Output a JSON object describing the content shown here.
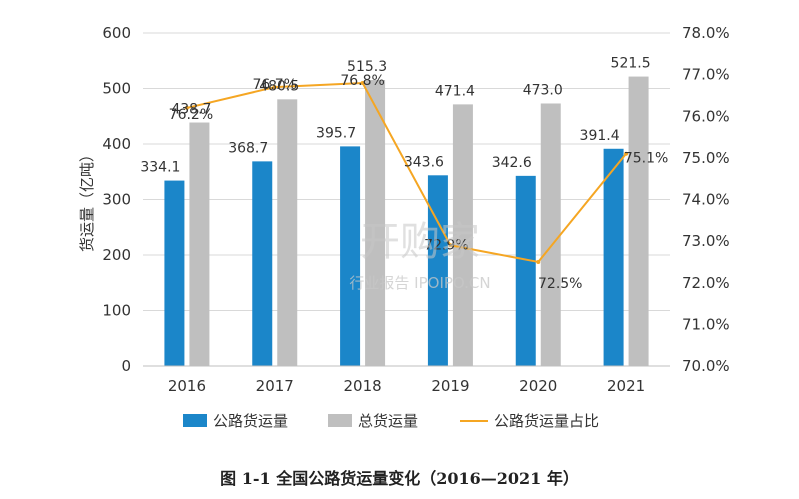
{
  "caption": "图 1-1 全国公路货运量变化（2016—2021 年）",
  "watermark": {
    "main": "开购家",
    "sub": "行业报告 IPOIPO.CN"
  },
  "colors": {
    "bar1": "#1b86c9",
    "bar2": "#bfbfbf",
    "line": "#f5a623",
    "grid": "#d9d9d9",
    "text": "#333333"
  },
  "chart_data": {
    "type": "bar",
    "categories": [
      "2016",
      "2017",
      "2018",
      "2019",
      "2020",
      "2021"
    ],
    "series": [
      {
        "name": "公路货运量",
        "type": "bar",
        "axis": "left",
        "values": [
          334.1,
          368.7,
          395.7,
          343.6,
          342.6,
          391.4
        ],
        "labels": [
          "334.1",
          "368.7",
          "395.7",
          "343.6",
          "342.6",
          "391.4"
        ]
      },
      {
        "name": "总货运量",
        "type": "bar",
        "axis": "left",
        "values": [
          438.7,
          480.5,
          515.3,
          471.4,
          473.0,
          521.5
        ],
        "labels": [
          "438.7",
          "480.5",
          "515.3",
          "471.4",
          "473.0",
          "521.5"
        ]
      },
      {
        "name": "公路货运量占比",
        "type": "line",
        "axis": "right",
        "values": [
          76.2,
          76.7,
          76.8,
          72.9,
          72.5,
          75.1
        ],
        "labels": [
          "76.2%",
          "76.7%",
          "76.8%",
          "72.9%",
          "72.5%",
          "75.1%"
        ]
      }
    ],
    "ylabel": "货运量（亿吨）",
    "ylim": [
      0,
      600
    ],
    "yticks": [
      "0",
      "100",
      "200",
      "300",
      "400",
      "500",
      "600"
    ],
    "y2lim": [
      70,
      78
    ],
    "y2ticks": [
      "70.0%",
      "71.0%",
      "72.0%",
      "73.0%",
      "74.0%",
      "75.0%",
      "76.0%",
      "77.0%",
      "78.0%"
    ],
    "grid": true,
    "legend_position": "bottom"
  }
}
